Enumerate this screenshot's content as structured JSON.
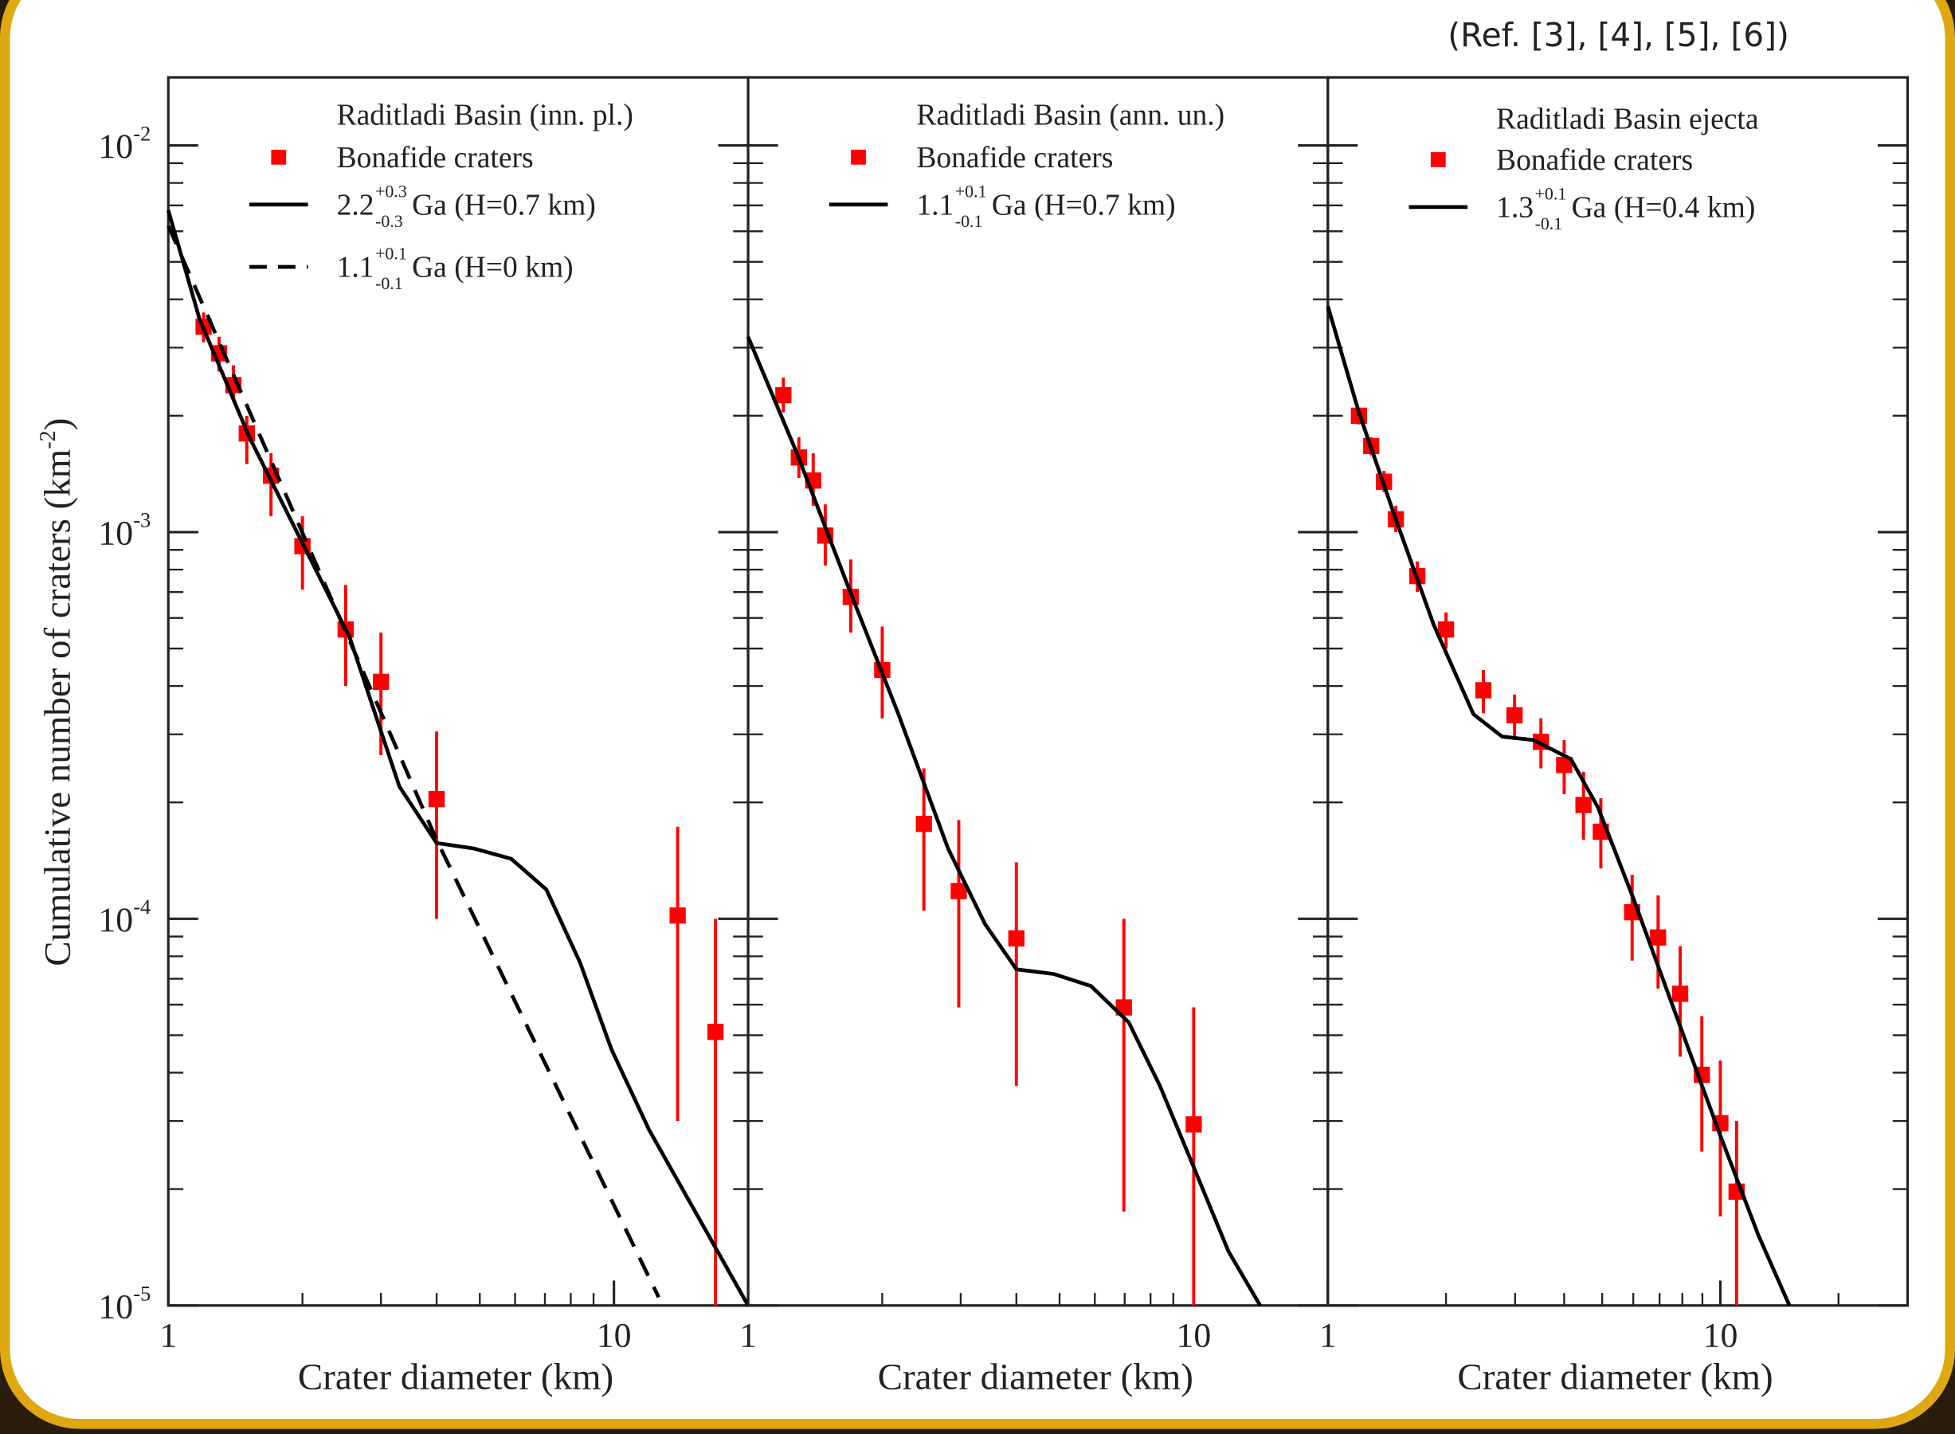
{
  "caption": "(Ref. [3], [4], [5], [6])",
  "chart_data": [
    {
      "type": "scatter",
      "legend_title": "Raditladi Basin (inn. pl.)",
      "xlabel": "Crater diameter (km)",
      "ylabel": "Cumulative number of craters (km",
      "ylabel_sup": "-2",
      "ylabel_end": ")",
      "log_x": true,
      "log_y": true,
      "minor_ticks": true,
      "ytick_labels": true,
      "xlim": [
        1,
        20
      ],
      "ylim": [
        1e-05,
        0.015
      ],
      "xticks": [
        1,
        10
      ],
      "yticks": [
        {
          "value": 1e-05,
          "label": "10",
          "exponent": "-5"
        },
        {
          "value": 0.0001,
          "label": "10",
          "exponent": "-4"
        },
        {
          "value": 0.001,
          "label": "10",
          "exponent": "-3"
        },
        {
          "value": 0.01,
          "label": "10",
          "exponent": "-2"
        }
      ],
      "series": [
        {
          "name": "Bonafide craters",
          "kind": "scatter",
          "color": "#ff0000",
          "x": [
            1.2,
            1.3,
            1.4,
            1.5,
            1.7,
            2.0,
            2.5,
            3.0,
            4.0,
            13.9,
            16.9
          ],
          "values": [
            0.0034,
            0.0029,
            0.0024,
            0.0018,
            0.0014,
            0.00092,
            0.00056,
            0.00041,
            0.000204,
            0.000102,
            5.1e-05
          ],
          "y_low": [
            0.0031,
            0.0026,
            0.0022,
            0.0015,
            0.0011,
            0.00071,
            0.0004,
            0.000265,
            0.0001,
            3e-05,
            1e-05
          ],
          "y_high": [
            0.0037,
            0.0032,
            0.0027,
            0.002,
            0.0016,
            0.0011,
            0.00073,
            0.00055,
            0.000305,
            0.000173,
            0.0001
          ]
        },
        {
          "name": "Ga (H=0.7 km)",
          "age": "2.2",
          "age_plus": "+0.3",
          "age_minus": "-0.3",
          "kind": "line",
          "dash": false,
          "color": "#000000",
          "x": [
            1,
            1.175,
            1.52,
            1.97,
            2.55,
            3.3,
            4.0,
            4.85,
            5.88,
            7.05,
            8.4,
            9.87,
            11.98,
            20
          ],
          "values": [
            0.0068,
            0.00356,
            0.00176,
            0.00097,
            0.000536,
            0.00022,
            0.000157,
            0.000152,
            0.000143,
            0.000119,
            7.7e-05,
            4.6e-05,
            2.85e-05,
            1e-05
          ]
        },
        {
          "name": "Ga (H=0 km)",
          "age": "1.1",
          "age_plus": "+0.1",
          "age_minus": "-0.1",
          "kind": "line",
          "dash": true,
          "color": "#000000",
          "x": [
            1,
            4,
            12.6
          ],
          "values": [
            0.0062,
            0.00016,
            1.05e-05
          ]
        }
      ]
    },
    {
      "type": "scatter",
      "legend_title": "Raditladi Basin (ann. un.)",
      "xlabel": "Crater diameter (km)",
      "log_x": true,
      "log_y": true,
      "minor_ticks": true,
      "ytick_labels": false,
      "xlim": [
        1,
        20
      ],
      "ylim": [
        1e-05,
        0.015
      ],
      "xticks": [
        1,
        10
      ],
      "yticks": [
        1e-05,
        0.0001,
        0.001,
        0.01
      ],
      "series": [
        {
          "name": "Bonafide craters",
          "kind": "scatter",
          "color": "#ff0000",
          "x": [
            1.2,
            1.3,
            1.4,
            1.49,
            1.7,
            2.0,
            2.48,
            2.97,
            4.0,
            6.97,
            10.0
          ],
          "values": [
            0.00226,
            0.00156,
            0.00136,
            0.00098,
            0.00068,
            0.00044,
            0.000176,
            0.000118,
            8.9e-05,
            5.9e-05,
            2.94e-05
          ],
          "y_low": [
            0.00204,
            0.00138,
            0.00117,
            0.00082,
            0.00055,
            0.00033,
            0.000105,
            5.9e-05,
            3.7e-05,
            1.75e-05,
            1e-05
          ],
          "y_high": [
            0.00251,
            0.00176,
            0.0016,
            0.00118,
            0.00085,
            0.00057,
            0.000245,
            0.00018,
            0.00014,
            0.0001,
            5.9e-05
          ]
        },
        {
          "name": "Ga (H=0.7 km)",
          "age": "1.1",
          "age_plus": "+0.1",
          "age_minus": "-0.1",
          "kind": "line",
          "dash": false,
          "color": "#000000",
          "x": [
            1,
            1.29,
            1.68,
            2.17,
            2.81,
            3.4,
            4.0,
            4.85,
            5.88,
            7.15,
            8.4,
            10,
            11.97,
            14.1
          ],
          "values": [
            0.0032,
            0.00159,
            0.00072,
            0.00034,
            0.000152,
            9.7e-05,
            7.4e-05,
            7.2e-05,
            6.7e-05,
            5.4e-05,
            3.7e-05,
            2.28e-05,
            1.38e-05,
            1e-05
          ]
        }
      ]
    },
    {
      "type": "scatter",
      "legend_title": "Raditladi Basin ejecta",
      "xlabel": "Crater diameter (km)",
      "log_x": true,
      "log_y": true,
      "minor_ticks": true,
      "ytick_labels": false,
      "xlim": [
        1,
        30
      ],
      "ylim": [
        1e-05,
        0.015
      ],
      "xticks": [
        1,
        10
      ],
      "yticks": [
        1e-05,
        0.0001,
        0.001,
        0.01
      ],
      "series": [
        {
          "name": "Bonafide craters",
          "kind": "scatter",
          "color": "#ff0000",
          "x": [
            1.2,
            1.29,
            1.39,
            1.49,
            1.69,
            2.0,
            2.49,
            2.99,
            3.49,
            4.0,
            4.48,
            4.96,
            5.96,
            6.94,
            7.9,
            8.97,
            10,
            11.0
          ],
          "values": [
            0.002,
            0.00167,
            0.00135,
            0.00108,
            0.00077,
            0.00056,
            0.00039,
            0.000336,
            0.000287,
            0.00025,
            0.000197,
            0.000168,
            0.000104,
            8.95e-05,
            6.4e-05,
            3.95e-05,
            2.96e-05,
            1.97e-05
          ],
          "y_low": [
            0.0019,
            0.00158,
            0.00127,
            0.001,
            0.0007,
            0.0005,
            0.00034,
            0.00029,
            0.000245,
            0.00021,
            0.00016,
            0.000135,
            7.8e-05,
            6.6e-05,
            4.4e-05,
            2.5e-05,
            1.7e-05,
            1e-05
          ],
          "y_high": [
            0.0021,
            0.00176,
            0.00144,
            0.00117,
            0.00084,
            0.00062,
            0.00044,
            0.00038,
            0.00033,
            0.00029,
            0.00024,
            0.000205,
            0.00013,
            0.000115,
            8.5e-05,
            5.6e-05,
            4.3e-05,
            3e-05
          ]
        },
        {
          "name": "Ga (H=0.4 km)",
          "age": "1.3",
          "age_plus": "+0.1",
          "age_minus": "-0.1",
          "kind": "line",
          "dash": false,
          "color": "#000000",
          "x": [
            1,
            1.2,
            1.49,
            1.86,
            2.35,
            2.78,
            3.34,
            4.16,
            4.88,
            6.0,
            7.45,
            10,
            12.5,
            15.0
          ],
          "values": [
            0.00384,
            0.00204,
            0.00108,
            0.000577,
            0.000338,
            0.000296,
            0.00029,
            0.000259,
            0.000194,
            0.000113,
            6.2e-05,
            2.75e-05,
            1.52e-05,
            1e-05
          ]
        }
      ]
    }
  ]
}
